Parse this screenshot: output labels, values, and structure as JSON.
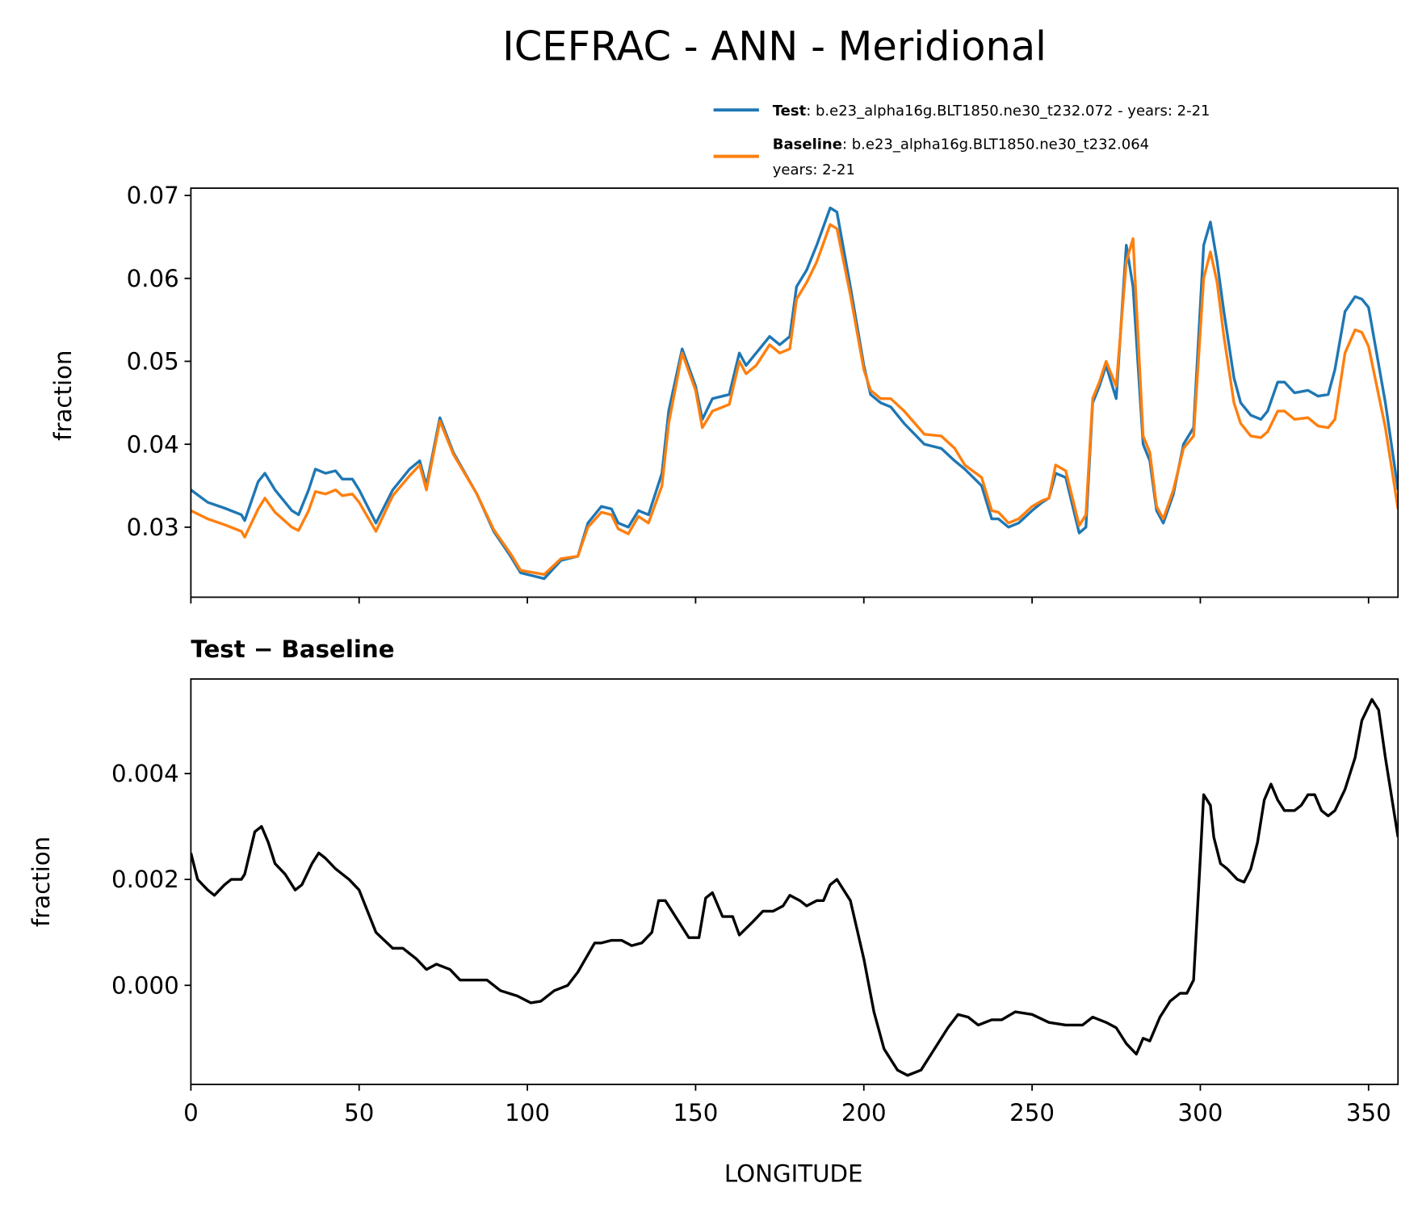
{
  "chart_data": [
    {
      "type": "line",
      "title": "ICEFRAC - ANN - Meridional",
      "ylabel": "fraction",
      "x": [
        0,
        5,
        10,
        15,
        16,
        20,
        22,
        25,
        30,
        32,
        35,
        37,
        40,
        43,
        45,
        48,
        50,
        55,
        60,
        65,
        68,
        70,
        74,
        78,
        85,
        90,
        95,
        98,
        105,
        110,
        115,
        118,
        122,
        125,
        127,
        130,
        133,
        136,
        140,
        142,
        146,
        150,
        152,
        155,
        160,
        163,
        165,
        168,
        172,
        175,
        178,
        180,
        183,
        186,
        190,
        192,
        196,
        200,
        202,
        205,
        208,
        212,
        218,
        223,
        227,
        230,
        235,
        238,
        240,
        243,
        246,
        250,
        253,
        255,
        257,
        260,
        264,
        266,
        268,
        270,
        272,
        275,
        278,
        280,
        283,
        285,
        287,
        289,
        292,
        295,
        298,
        301,
        303,
        305,
        307,
        310,
        312,
        315,
        318,
        320,
        323,
        325,
        328,
        332,
        335,
        338,
        340,
        343,
        346,
        348,
        350,
        355,
        358.75
      ],
      "series": [
        {
          "name": "Test",
          "description": [
            ": b.e23_alpha16g.BLT1850.ne30_t232.072 - years: 2-21"
          ],
          "color": "#1f77b4",
          "values": [
            0.0345,
            0.033,
            0.0323,
            0.0315,
            0.0308,
            0.0355,
            0.0365,
            0.0345,
            0.032,
            0.0315,
            0.0345,
            0.037,
            0.0365,
            0.0368,
            0.0358,
            0.0358,
            0.0345,
            0.0305,
            0.0345,
            0.037,
            0.038,
            0.035,
            0.0432,
            0.039,
            0.034,
            0.0295,
            0.0265,
            0.0245,
            0.0238,
            0.026,
            0.0265,
            0.0305,
            0.0325,
            0.0322,
            0.0305,
            0.03,
            0.032,
            0.0315,
            0.0365,
            0.044,
            0.0515,
            0.047,
            0.043,
            0.0455,
            0.046,
            0.051,
            0.0495,
            0.051,
            0.053,
            0.052,
            0.053,
            0.059,
            0.061,
            0.064,
            0.0685,
            0.068,
            0.059,
            0.0495,
            0.046,
            0.045,
            0.0445,
            0.0425,
            0.04,
            0.0395,
            0.038,
            0.037,
            0.035,
            0.031,
            0.031,
            0.03,
            0.0305,
            0.032,
            0.033,
            0.0335,
            0.0365,
            0.036,
            0.0293,
            0.03,
            0.045,
            0.047,
            0.0495,
            0.0455,
            0.064,
            0.059,
            0.04,
            0.038,
            0.032,
            0.0305,
            0.034,
            0.04,
            0.042,
            0.064,
            0.0668,
            0.062,
            0.056,
            0.048,
            0.045,
            0.0435,
            0.043,
            0.044,
            0.0475,
            0.0475,
            0.0462,
            0.0465,
            0.0458,
            0.046,
            0.049,
            0.056,
            0.0578,
            0.0575,
            0.0565,
            0.045,
            0.0345
          ]
        },
        {
          "name": "Baseline",
          "description": [
            ": b.e23_alpha16g.BLT1850.ne30_t232.064",
            "years: 2-21"
          ],
          "color": "#ff7f0e",
          "values": [
            0.032,
            0.031,
            0.0303,
            0.0295,
            0.0288,
            0.0322,
            0.0335,
            0.0318,
            0.03,
            0.0296,
            0.032,
            0.0343,
            0.034,
            0.0345,
            0.0338,
            0.034,
            0.033,
            0.0295,
            0.0338,
            0.0362,
            0.0375,
            0.0345,
            0.0428,
            0.0388,
            0.034,
            0.0297,
            0.0268,
            0.0248,
            0.0243,
            0.0262,
            0.0265,
            0.03,
            0.0318,
            0.0315,
            0.0298,
            0.0292,
            0.0313,
            0.0305,
            0.035,
            0.0425,
            0.051,
            0.0465,
            0.042,
            0.044,
            0.0448,
            0.05,
            0.0485,
            0.0495,
            0.052,
            0.051,
            0.0515,
            0.0575,
            0.0595,
            0.062,
            0.0665,
            0.066,
            0.058,
            0.049,
            0.0465,
            0.0455,
            0.0455,
            0.044,
            0.0412,
            0.041,
            0.0395,
            0.0375,
            0.036,
            0.032,
            0.0318,
            0.0305,
            0.031,
            0.0325,
            0.0332,
            0.0335,
            0.0375,
            0.0368,
            0.0302,
            0.0315,
            0.0455,
            0.0475,
            0.05,
            0.047,
            0.062,
            0.0648,
            0.041,
            0.039,
            0.0325,
            0.031,
            0.0345,
            0.0395,
            0.041,
            0.06,
            0.0632,
            0.0595,
            0.053,
            0.045,
            0.0425,
            0.041,
            0.0408,
            0.0415,
            0.044,
            0.044,
            0.043,
            0.0432,
            0.0422,
            0.042,
            0.043,
            0.051,
            0.0538,
            0.0535,
            0.0518,
            0.042,
            0.0322
          ]
        }
      ],
      "xlim": [
        0,
        358.75
      ],
      "xticks": [
        0,
        50,
        100,
        150,
        200,
        250,
        300,
        350
      ],
      "ylim": [
        0.02156,
        0.07088
      ],
      "yticks": [
        0.03,
        0.04,
        0.05,
        0.06,
        0.07
      ]
    },
    {
      "type": "line",
      "subtitle": "Test − Baseline",
      "ylabel": "fraction",
      "xlabel": "LONGITUDE",
      "x": [
        0,
        2,
        5,
        7,
        10,
        12,
        15,
        16,
        19,
        21,
        23,
        25,
        28,
        31,
        33,
        36,
        38,
        40,
        43,
        47,
        50,
        55,
        60,
        63,
        67,
        70,
        73,
        77,
        80,
        85,
        88,
        92,
        97,
        101,
        104,
        108,
        112,
        115,
        120,
        122,
        125,
        128,
        131,
        134,
        137,
        139,
        141,
        145,
        148,
        151,
        153,
        155,
        158,
        161,
        163,
        167,
        170,
        173,
        176,
        178,
        181,
        183,
        186,
        188,
        190,
        192,
        196,
        200,
        203,
        206,
        210,
        213,
        217,
        220,
        225,
        228,
        231,
        234,
        238,
        241,
        245,
        250,
        255,
        260,
        265,
        268,
        272,
        275,
        278,
        281,
        283,
        285,
        288,
        291,
        294,
        296,
        298,
        300,
        301,
        303,
        304,
        306,
        308,
        311,
        313,
        315,
        317,
        319,
        321,
        323,
        325,
        328,
        330,
        332,
        334,
        336,
        338,
        340,
        343,
        346,
        348,
        351,
        353,
        355,
        358.75
      ],
      "series": [
        {
          "color": "#000000",
          "values": [
            0.0025,
            0.002,
            0.0018,
            0.0017,
            0.0019,
            0.002,
            0.002,
            0.0021,
            0.0029,
            0.003,
            0.0027,
            0.0023,
            0.0021,
            0.0018,
            0.0019,
            0.0023,
            0.0025,
            0.0024,
            0.0022,
            0.002,
            0.0018,
            0.001,
            0.0007,
            0.0007,
            0.0005,
            0.0003,
            0.0004,
            0.0003,
            0.0001,
            0.0001,
            0.0001,
            -0.0001,
            -0.0002,
            -0.00033,
            -0.0003,
            -0.0001,
            0,
            0.00025,
            0.0008,
            0.0008,
            0.00085,
            0.00085,
            0.00075,
            0.0008,
            0.001,
            0.0016,
            0.0016,
            0.0012,
            0.0009,
            0.0009,
            0.00165,
            0.00175,
            0.0013,
            0.0013,
            0.00095,
            0.0012,
            0.0014,
            0.0014,
            0.0015,
            0.0017,
            0.0016,
            0.0015,
            0.0016,
            0.0016,
            0.0019,
            0.002,
            0.0016,
            0.0005,
            -0.0005,
            -0.0012,
            -0.0016,
            -0.0017,
            -0.0016,
            -0.0013,
            -0.0008,
            -0.00055,
            -0.0006,
            -0.00075,
            -0.00065,
            -0.00065,
            -0.0005,
            -0.00055,
            -0.0007,
            -0.00075,
            -0.00075,
            -0.0006,
            -0.0007,
            -0.0008,
            -0.0011,
            -0.0013,
            -0.001,
            -0.00105,
            -0.0006,
            -0.0003,
            -0.00015,
            -0.00015,
            0.0001,
            0.0024,
            0.0036,
            0.0034,
            0.0028,
            0.0023,
            0.0022,
            0.002,
            0.00195,
            0.0022,
            0.0027,
            0.0035,
            0.0038,
            0.0035,
            0.0033,
            0.0033,
            0.0034,
            0.0036,
            0.0036,
            0.0033,
            0.0032,
            0.0033,
            0.0037,
            0.0043,
            0.005,
            0.0054,
            0.0052,
            0.0043,
            0.0028
          ]
        }
      ],
      "xlim": [
        0,
        358.75
      ],
      "xticks": [
        0,
        50,
        100,
        150,
        200,
        250,
        300,
        350
      ],
      "ylim": [
        -0.00187,
        0.005785
      ],
      "yticks": [
        {
          "value": 0,
          "label": "0.000"
        },
        {
          "value": 0.002,
          "label": "0.002"
        },
        {
          "value": 0.004,
          "label": "0.004"
        }
      ]
    }
  ]
}
